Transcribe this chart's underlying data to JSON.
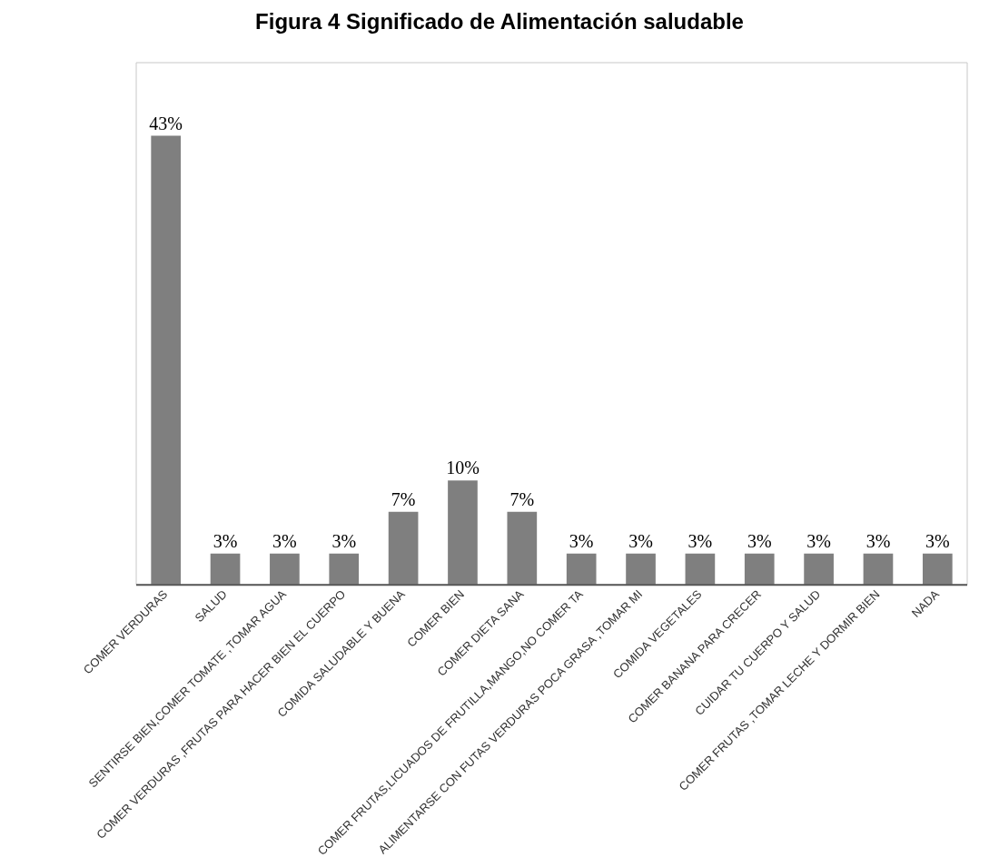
{
  "chart_data": {
    "type": "bar",
    "title": "Figura 4 Significado de  Alimentación saludable",
    "categories": [
      "COMER VERDURAS",
      "SALUD",
      "SENTIRSE BIEN,COMER TOMATE ,TOMAR AGUA",
      "COMER VERDURAS ,FRUTAS PARA HACER BIEN EL CUERPO",
      "COMIDA SALUDABLE Y BUENA",
      "COMER BIEN",
      "COMER DIETA SANA",
      "COMER FRUTAS,LICUADOS DE FRUTILLA,MANGO,NO COMER TA",
      "ALIMENTARSE CON FUTAS VERDURAS POCA GRASA ,TOMAR MI",
      "COMIDA VEGETALES",
      "COMER BANANA PARA CRECER",
      "CUIDAR TU CUERPO Y SALUD",
      "COMER FRUTAS ,TOMAR LECHE Y DORMIR BIEN",
      "NADA"
    ],
    "values": [
      43,
      3,
      3,
      3,
      7,
      10,
      7,
      3,
      3,
      3,
      3,
      3,
      3,
      3
    ],
    "value_labels": [
      "43%",
      "3%",
      "3%",
      "3%",
      "7%",
      "10%",
      "7%",
      "3%",
      "3%",
      "3%",
      "3%",
      "3%",
      "3%",
      "3%"
    ],
    "color": "#7f7f7f",
    "grid": false,
    "legend": false,
    "tick_labels": "x"
  }
}
